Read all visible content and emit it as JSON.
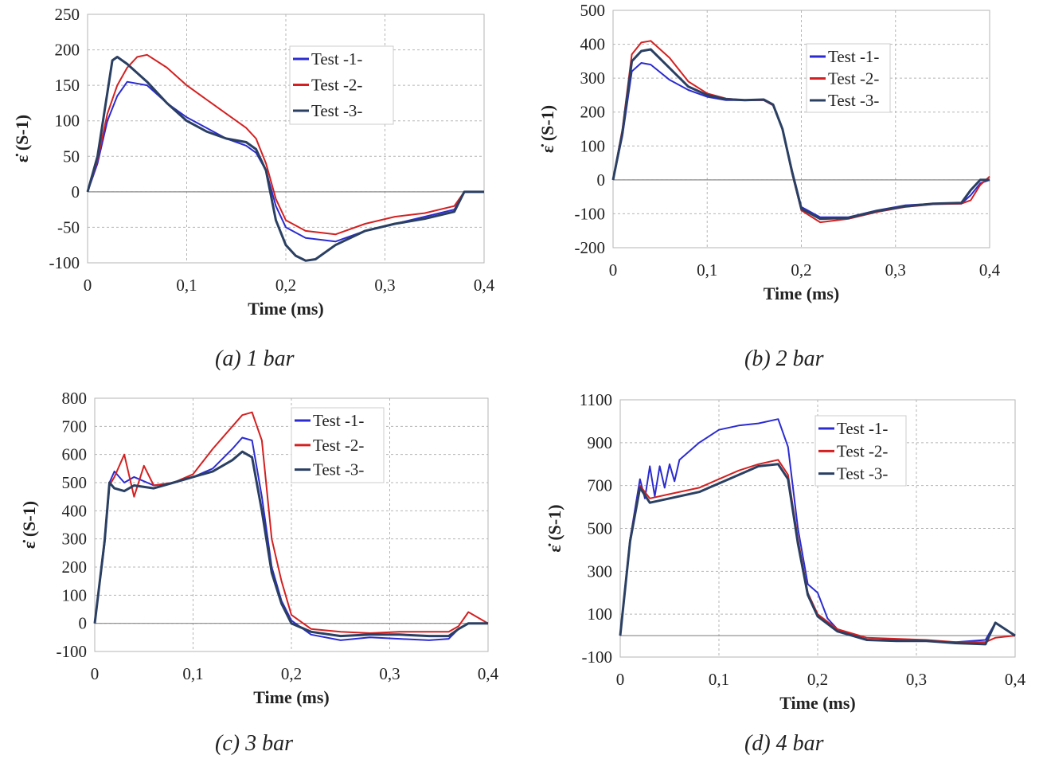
{
  "colors": {
    "test1": "#2b2bd1",
    "test2": "#d42020",
    "test3": "#2a3f62",
    "grid": "#b5b5b5",
    "axis": "#888888",
    "text": "#222222"
  },
  "chart_data": [
    {
      "type": "line",
      "caption": "(a) 1 bar",
      "xlabel": "Time (ms)",
      "ylabel": "ε̇ (S-1)",
      "xlim": [
        0,
        0.4
      ],
      "ylim": [
        -100,
        250
      ],
      "xticks": [
        0,
        0.1,
        0.2,
        0.3,
        0.4
      ],
      "xticklabels": [
        "0",
        "0,1",
        "0,2",
        "0,3",
        "0,4"
      ],
      "yticks": [
        -100,
        -50,
        0,
        50,
        100,
        150,
        200,
        250
      ],
      "yticklabels": [
        "-100",
        "-50",
        "0",
        "50",
        "100",
        "150",
        "200",
        "250"
      ],
      "grid": true,
      "legend_position": "top-right",
      "series": [
        {
          "name": "Test -1-",
          "x": [
            0,
            0.01,
            0.02,
            0.03,
            0.04,
            0.06,
            0.08,
            0.1,
            0.12,
            0.14,
            0.16,
            0.17,
            0.18,
            0.19,
            0.2,
            0.22,
            0.25,
            0.28,
            0.31,
            0.34,
            0.37,
            0.38,
            0.4
          ],
          "y": [
            0,
            40,
            100,
            135,
            155,
            150,
            125,
            105,
            90,
            75,
            65,
            55,
            30,
            -20,
            -50,
            -65,
            -70,
            -55,
            -45,
            -35,
            -25,
            0,
            0
          ]
        },
        {
          "name": "Test -2-",
          "x": [
            0,
            0.01,
            0.02,
            0.03,
            0.04,
            0.05,
            0.06,
            0.08,
            0.1,
            0.12,
            0.14,
            0.16,
            0.17,
            0.18,
            0.19,
            0.2,
            0.22,
            0.25,
            0.28,
            0.31,
            0.34,
            0.37,
            0.38,
            0.4
          ],
          "y": [
            0,
            45,
            110,
            150,
            175,
            190,
            193,
            175,
            150,
            130,
            110,
            90,
            75,
            40,
            -10,
            -40,
            -55,
            -60,
            -45,
            -35,
            -30,
            -20,
            0,
            0
          ]
        },
        {
          "name": "Test -3-",
          "x": [
            0,
            0.01,
            0.02,
            0.025,
            0.03,
            0.04,
            0.06,
            0.08,
            0.1,
            0.12,
            0.14,
            0.16,
            0.17,
            0.18,
            0.19,
            0.2,
            0.21,
            0.22,
            0.23,
            0.25,
            0.28,
            0.31,
            0.34,
            0.37,
            0.38,
            0.4
          ],
          "y": [
            0,
            50,
            140,
            185,
            190,
            180,
            155,
            125,
            100,
            85,
            75,
            70,
            60,
            30,
            -40,
            -75,
            -90,
            -97,
            -95,
            -75,
            -55,
            -45,
            -38,
            -28,
            0,
            0
          ]
        }
      ]
    },
    {
      "type": "line",
      "caption": "(b) 2 bar",
      "xlabel": "Time (ms)",
      "ylabel": "ε̇ (S-1)",
      "xlim": [
        0,
        0.4
      ],
      "ylim": [
        -200,
        500
      ],
      "xticks": [
        0,
        0.1,
        0.2,
        0.3,
        0.4
      ],
      "xticklabels": [
        "0",
        "0,1",
        "0,2",
        "0,3",
        "0,4"
      ],
      "yticks": [
        -200,
        -100,
        0,
        100,
        200,
        300,
        400,
        500
      ],
      "yticklabels": [
        "-200",
        "-100",
        "0",
        "100",
        "200",
        "300",
        "400",
        "500"
      ],
      "grid": true,
      "legend_position": "top-right",
      "series": [
        {
          "name": "Test -1-",
          "x": [
            0,
            0.01,
            0.02,
            0.03,
            0.04,
            0.06,
            0.08,
            0.1,
            0.12,
            0.14,
            0.16,
            0.17,
            0.18,
            0.19,
            0.2,
            0.22,
            0.25,
            0.28,
            0.31,
            0.34,
            0.37,
            0.38,
            0.39,
            0.4
          ],
          "y": [
            0,
            130,
            320,
            345,
            340,
            295,
            265,
            245,
            235,
            235,
            235,
            220,
            150,
            30,
            -80,
            -110,
            -110,
            -90,
            -75,
            -70,
            -70,
            -45,
            -10,
            0
          ]
        },
        {
          "name": "Test -2-",
          "x": [
            0,
            0.01,
            0.02,
            0.03,
            0.04,
            0.06,
            0.08,
            0.1,
            0.12,
            0.14,
            0.16,
            0.17,
            0.18,
            0.19,
            0.2,
            0.22,
            0.25,
            0.28,
            0.31,
            0.34,
            0.37,
            0.38,
            0.39,
            0.4
          ],
          "y": [
            0,
            150,
            370,
            405,
            410,
            360,
            290,
            255,
            240,
            235,
            235,
            220,
            150,
            20,
            -90,
            -125,
            -115,
            -95,
            -80,
            -72,
            -70,
            -60,
            -15,
            10
          ]
        },
        {
          "name": "Test -3-",
          "x": [
            0,
            0.01,
            0.02,
            0.03,
            0.04,
            0.06,
            0.08,
            0.1,
            0.12,
            0.14,
            0.16,
            0.17,
            0.18,
            0.19,
            0.2,
            0.22,
            0.25,
            0.28,
            0.31,
            0.34,
            0.37,
            0.38,
            0.39,
            0.4
          ],
          "y": [
            0,
            140,
            350,
            380,
            385,
            330,
            275,
            250,
            238,
            235,
            237,
            222,
            150,
            25,
            -85,
            -115,
            -112,
            -92,
            -78,
            -70,
            -68,
            -30,
            0,
            0
          ]
        }
      ]
    },
    {
      "type": "line",
      "caption": "(c) 3 bar",
      "xlabel": "Time (ms)",
      "ylabel": "ε̇ (S-1)",
      "xlim": [
        0,
        0.4
      ],
      "ylim": [
        -100,
        800
      ],
      "xticks": [
        0,
        0.1,
        0.2,
        0.3,
        0.4
      ],
      "xticklabels": [
        "0",
        "0,1",
        "0,2",
        "0,3",
        "0,4"
      ],
      "yticks": [
        -100,
        0,
        100,
        200,
        300,
        400,
        500,
        600,
        700,
        800
      ],
      "yticklabels": [
        "-100",
        "0",
        "100",
        "200",
        "300",
        "400",
        "500",
        "600",
        "700",
        "800"
      ],
      "grid": true,
      "legend_position": "top-right",
      "series": [
        {
          "name": "Test -1-",
          "x": [
            0,
            0.01,
            0.015,
            0.02,
            0.03,
            0.04,
            0.06,
            0.08,
            0.1,
            0.12,
            0.14,
            0.15,
            0.16,
            0.17,
            0.18,
            0.19,
            0.2,
            0.22,
            0.25,
            0.28,
            0.31,
            0.34,
            0.36,
            0.37,
            0.38,
            0.4
          ],
          "y": [
            0,
            300,
            500,
            540,
            500,
            520,
            490,
            500,
            520,
            550,
            620,
            660,
            650,
            450,
            200,
            80,
            10,
            -40,
            -60,
            -50,
            -55,
            -60,
            -55,
            -20,
            0,
            0
          ]
        },
        {
          "name": "Test -2-",
          "x": [
            0,
            0.01,
            0.015,
            0.02,
            0.03,
            0.04,
            0.05,
            0.06,
            0.08,
            0.1,
            0.12,
            0.14,
            0.15,
            0.16,
            0.17,
            0.18,
            0.19,
            0.2,
            0.22,
            0.25,
            0.28,
            0.31,
            0.34,
            0.36,
            0.37,
            0.38,
            0.4
          ],
          "y": [
            0,
            280,
            490,
            520,
            600,
            450,
            560,
            490,
            500,
            530,
            620,
            700,
            740,
            750,
            650,
            300,
            150,
            30,
            -20,
            -30,
            -35,
            -30,
            -30,
            -30,
            -10,
            40,
            0
          ]
        },
        {
          "name": "Test -3-",
          "x": [
            0,
            0.01,
            0.015,
            0.02,
            0.03,
            0.04,
            0.06,
            0.08,
            0.1,
            0.12,
            0.14,
            0.15,
            0.16,
            0.17,
            0.18,
            0.19,
            0.2,
            0.22,
            0.25,
            0.28,
            0.31,
            0.34,
            0.36,
            0.37,
            0.38,
            0.4
          ],
          "y": [
            0,
            290,
            500,
            480,
            470,
            490,
            480,
            500,
            520,
            540,
            580,
            610,
            590,
            400,
            180,
            70,
            0,
            -30,
            -45,
            -40,
            -40,
            -45,
            -45,
            -20,
            0,
            0
          ]
        }
      ]
    },
    {
      "type": "line",
      "caption": "(d) 4 bar",
      "xlabel": "Time (ms)",
      "ylabel": "ε̇ (S-1)",
      "xlim": [
        0,
        0.4
      ],
      "ylim": [
        -100,
        1100
      ],
      "xticks": [
        0,
        0.1,
        0.2,
        0.3,
        0.4
      ],
      "xticklabels": [
        "0",
        "0,1",
        "0,2",
        "0,3",
        "0,4"
      ],
      "yticks": [
        -100,
        100,
        300,
        500,
        700,
        900,
        1100
      ],
      "yticklabels": [
        "-100",
        "100",
        "300",
        "500",
        "700",
        "900",
        "1100"
      ],
      "grid": true,
      "legend_position": "top-right",
      "series": [
        {
          "name": "Test -1-",
          "x": [
            0,
            0.01,
            0.02,
            0.025,
            0.03,
            0.035,
            0.04,
            0.045,
            0.05,
            0.055,
            0.06,
            0.08,
            0.1,
            0.12,
            0.14,
            0.16,
            0.17,
            0.18,
            0.19,
            0.2,
            0.21,
            0.22,
            0.25,
            0.28,
            0.31,
            0.34,
            0.37,
            0.38,
            0.4
          ],
          "y": [
            0,
            450,
            730,
            640,
            790,
            650,
            790,
            690,
            800,
            720,
            820,
            900,
            960,
            980,
            990,
            1010,
            880,
            500,
            240,
            200,
            80,
            30,
            -20,
            -20,
            -25,
            -30,
            -20,
            60,
            0
          ]
        },
        {
          "name": "Test -2-",
          "x": [
            0,
            0.01,
            0.02,
            0.03,
            0.05,
            0.08,
            0.1,
            0.12,
            0.14,
            0.16,
            0.17,
            0.18,
            0.19,
            0.2,
            0.22,
            0.25,
            0.28,
            0.31,
            0.34,
            0.37,
            0.38,
            0.4
          ],
          "y": [
            0,
            450,
            700,
            640,
            660,
            690,
            730,
            770,
            800,
            820,
            750,
            450,
            200,
            100,
            30,
            -10,
            -15,
            -20,
            -30,
            -30,
            -10,
            0
          ]
        },
        {
          "name": "Test -3-",
          "x": [
            0,
            0.01,
            0.02,
            0.03,
            0.05,
            0.08,
            0.1,
            0.12,
            0.14,
            0.16,
            0.17,
            0.18,
            0.19,
            0.2,
            0.22,
            0.25,
            0.28,
            0.31,
            0.34,
            0.37,
            0.38,
            0.4
          ],
          "y": [
            0,
            440,
            690,
            620,
            640,
            670,
            710,
            750,
            790,
            800,
            730,
            430,
            190,
            90,
            20,
            -20,
            -25,
            -25,
            -35,
            -40,
            60,
            0
          ]
        }
      ]
    }
  ]
}
